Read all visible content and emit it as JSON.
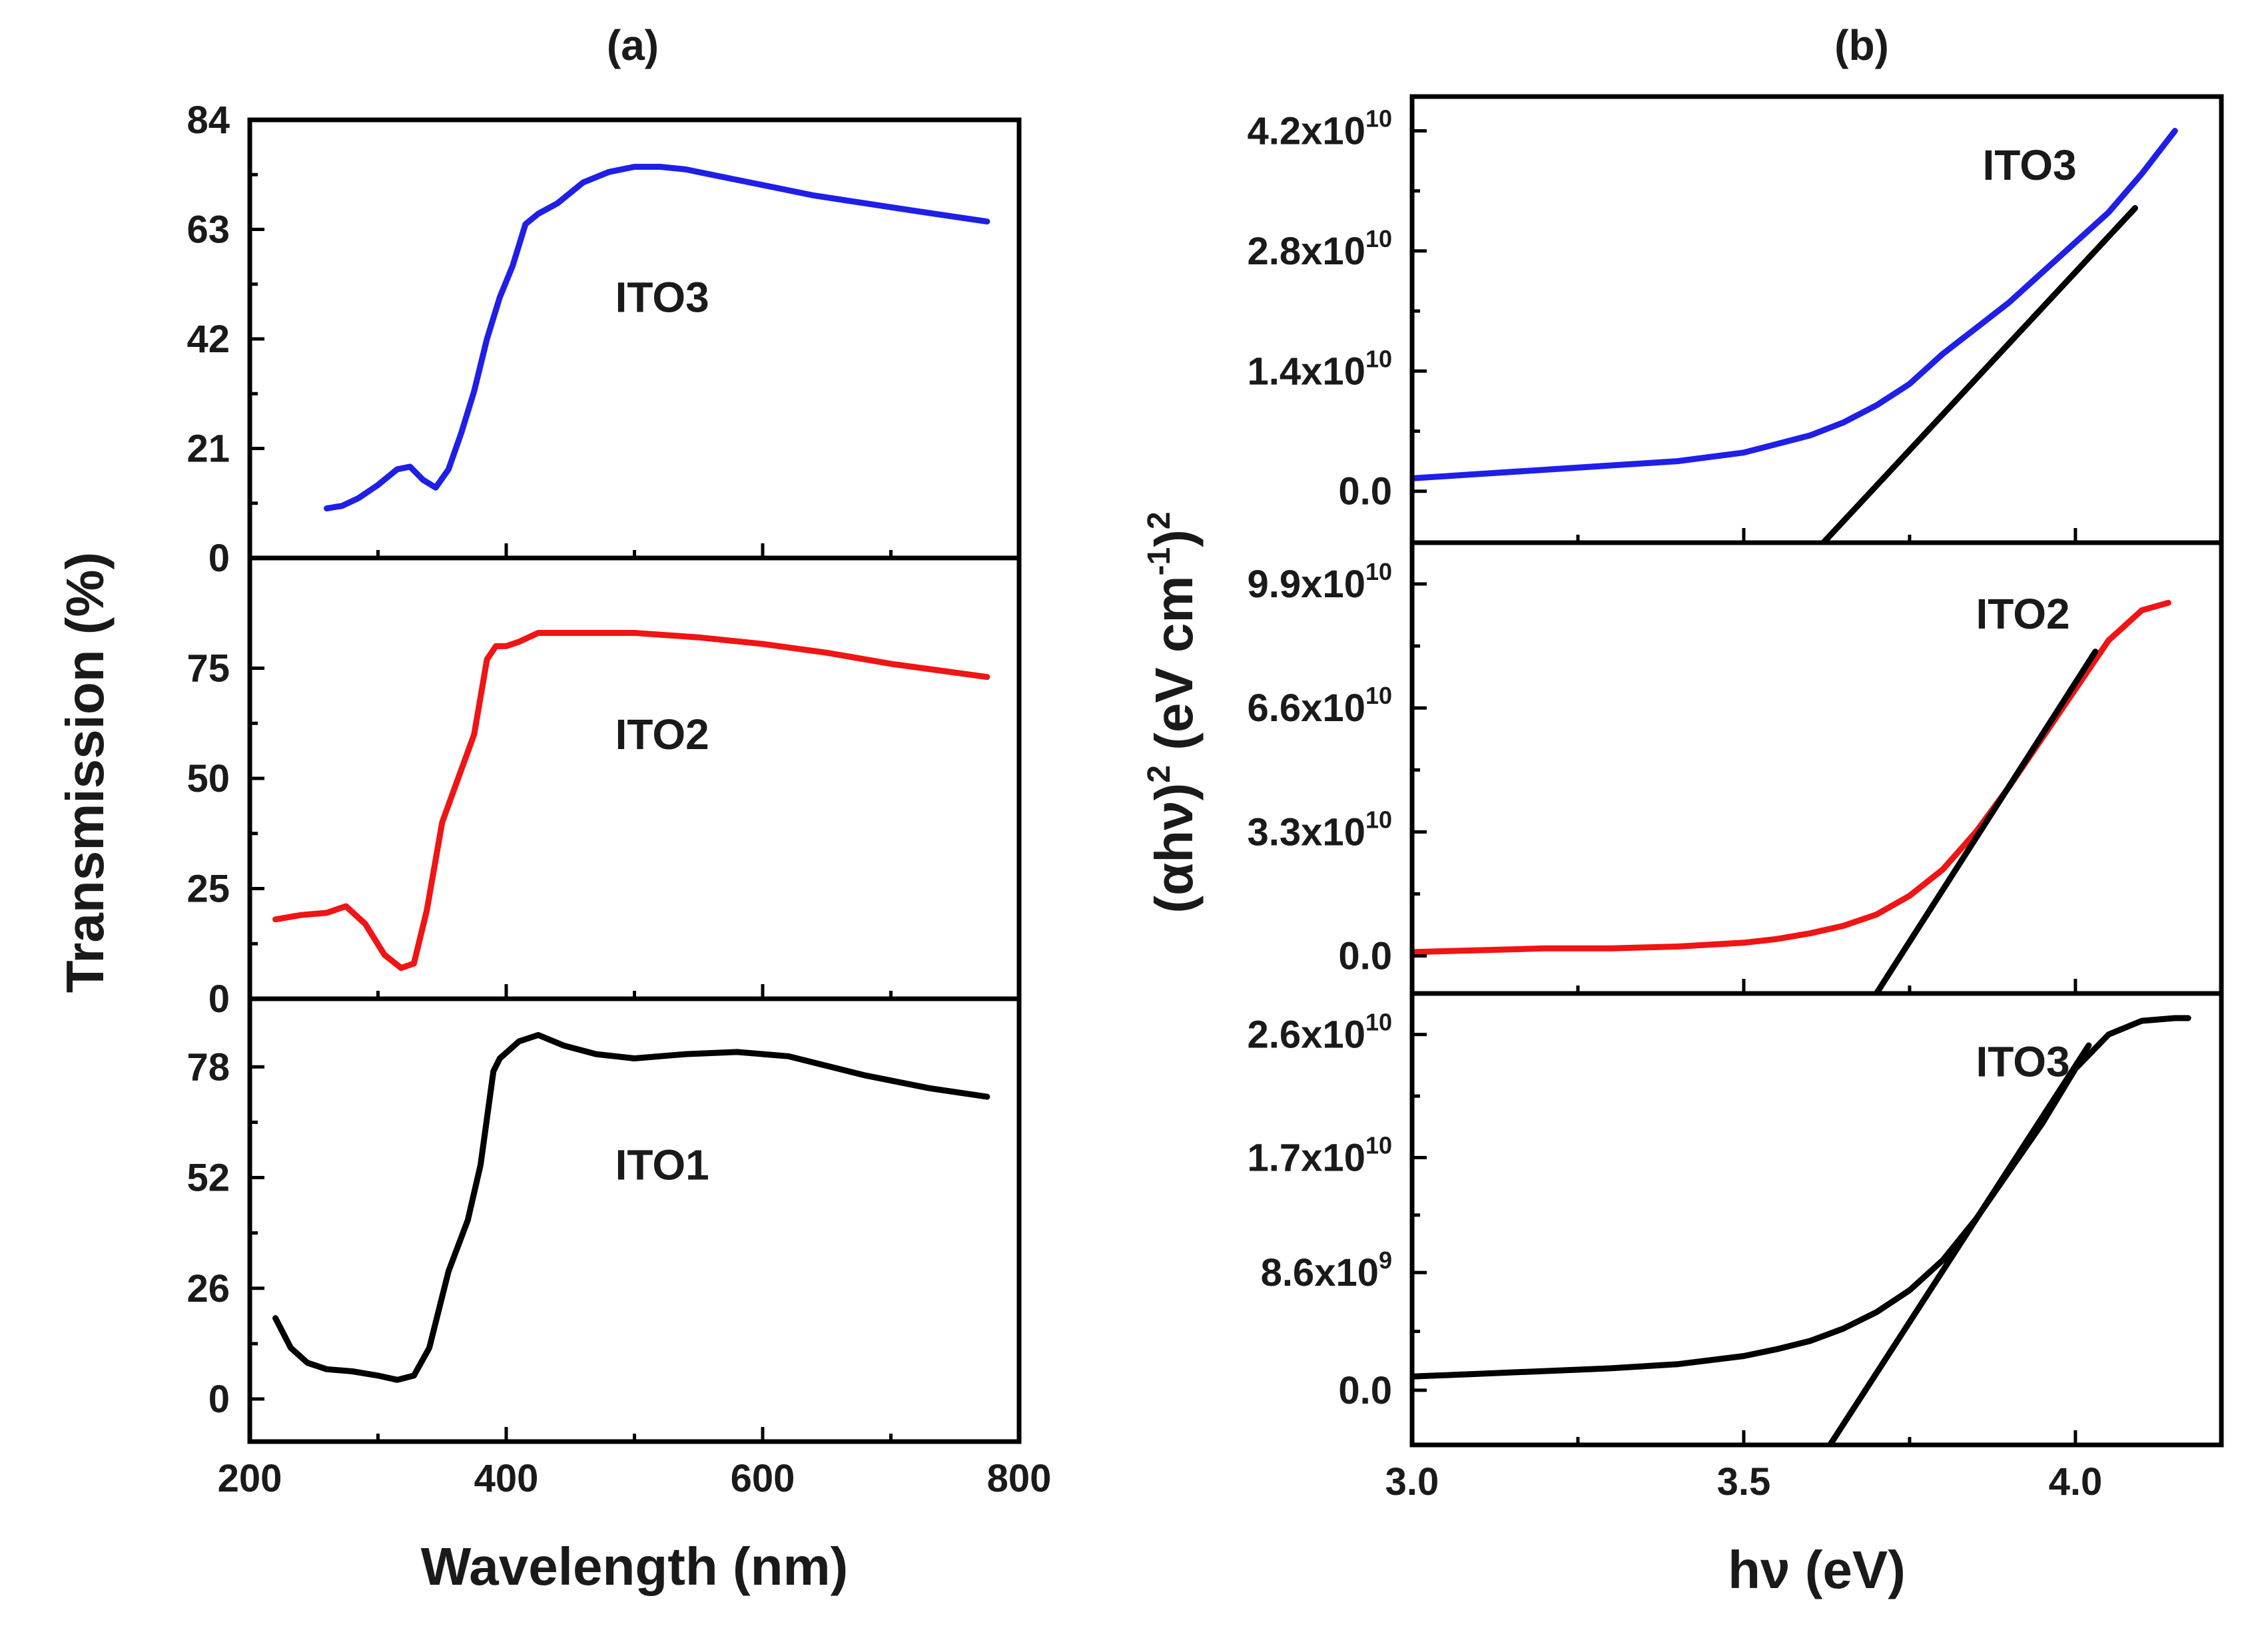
{
  "chart_data": [
    {
      "id": "a",
      "type": "line",
      "panel_label": "(a)",
      "xlabel": "Wavelength (nm)",
      "ylabel": "Transmission (%)",
      "xlim": [
        200,
        800
      ],
      "xticks": [
        200,
        400,
        600,
        800
      ],
      "xtick_labels": [
        "200",
        "400",
        "600",
        "800"
      ],
      "subplots": [
        {
          "name": "ITO3",
          "annotation": "ITO3",
          "color": "#1f1fe8",
          "ylim": [
            0,
            84
          ],
          "yticks": [
            0,
            21,
            42,
            63,
            84
          ],
          "ytick_labels": [
            "0",
            "21",
            "42",
            "63",
            "84"
          ],
          "label_at": [
            485,
            50
          ],
          "x": [
            260,
            272,
            285,
            300,
            315,
            325,
            335,
            345,
            355,
            365,
            375,
            385,
            395,
            405,
            415,
            420,
            425,
            440,
            460,
            480,
            500,
            520,
            540,
            560,
            580,
            600,
            640,
            680,
            720,
            775
          ],
          "y": [
            9.5,
            10,
            11.5,
            14,
            17,
            17.5,
            15,
            13.5,
            17,
            24,
            32,
            42,
            50,
            56,
            64,
            65,
            66,
            68,
            72,
            74,
            75,
            75,
            74.5,
            73.5,
            72.5,
            71.5,
            69.5,
            68,
            66.5,
            64.5
          ]
        },
        {
          "name": "ITO2",
          "annotation": "ITO2",
          "color": "#f01414",
          "ylim": [
            0,
            100
          ],
          "yticks": [
            0,
            25,
            50,
            75
          ],
          "ytick_labels": [
            "0",
            "25",
            "50",
            "75"
          ],
          "label_at": [
            485,
            60
          ],
          "x": [
            220,
            240,
            260,
            275,
            290,
            305,
            318,
            328,
            338,
            350,
            365,
            375,
            385,
            392,
            400,
            410,
            425,
            450,
            500,
            550,
            600,
            650,
            700,
            775
          ],
          "y": [
            18,
            19,
            19.5,
            21,
            17,
            10,
            7,
            8,
            20,
            40,
            52,
            60,
            77,
            80,
            80,
            81,
            83,
            83,
            83,
            82,
            80.5,
            78.5,
            76,
            73
          ]
        },
        {
          "name": "ITO1",
          "annotation": "ITO1",
          "color": "#000000",
          "ylim": [
            -10,
            94
          ],
          "yticks": [
            0,
            26,
            52,
            78
          ],
          "ytick_labels": [
            "0",
            "26",
            "52",
            "78"
          ],
          "label_at": [
            485,
            55
          ],
          "x": [
            220,
            232,
            245,
            260,
            280,
            300,
            315,
            328,
            340,
            355,
            370,
            380,
            390,
            395,
            410,
            425,
            445,
            470,
            500,
            540,
            580,
            620,
            680,
            730,
            775
          ],
          "y": [
            19,
            12,
            8.5,
            7,
            6.5,
            5.5,
            4.5,
            5.5,
            12,
            30,
            42,
            55,
            77,
            80,
            84,
            85.5,
            83,
            81,
            80,
            81,
            81.5,
            80.5,
            76,
            73,
            71
          ]
        }
      ]
    },
    {
      "id": "b",
      "type": "line",
      "panel_label": "(b)",
      "xlabel": "hν (eV)",
      "ylabel_main": "(αhν)",
      "ylabel_exp": "2",
      "ylabel_unit_pre": "(eV cm",
      "ylabel_unit_exp": "-1",
      "ylabel_unit_post": ")",
      "ylabel_unit_exp2": "2",
      "xlim": [
        3.0,
        4.22
      ],
      "xticks": [
        3.0,
        3.5,
        4.0
      ],
      "xtick_labels": [
        "3.0",
        "3.5",
        "4.0"
      ],
      "subplots": [
        {
          "name": "ITO3",
          "annotation": "ITO3",
          "color": "#1f1fe8",
          "ylim": [
            -6000000000.0,
            46000000000.0
          ],
          "yticks": [
            0,
            14000000000.0,
            28000000000.0,
            42000000000.0
          ],
          "ytick_mantissa": [
            "0.0",
            "1.4x10",
            "2.8x10",
            "4.2x10"
          ],
          "ytick_exponent": [
            "",
            "10",
            "10",
            "10"
          ],
          "label_at": [
            3.86,
            38000000000.0
          ],
          "x": [
            3.0,
            3.1,
            3.2,
            3.3,
            3.4,
            3.5,
            3.55,
            3.6,
            3.65,
            3.7,
            3.75,
            3.8,
            3.85,
            3.9,
            3.95,
            4.0,
            4.05,
            4.1,
            4.15
          ],
          "y": [
            1500000000.0,
            2000000000.0,
            2500000000.0,
            3000000000.0,
            3500000000.0,
            4500000000.0,
            5500000000.0,
            6500000000.0,
            8000000000.0,
            10000000000.0,
            12500000000.0,
            16000000000.0,
            19000000000.0,
            22000000000.0,
            25500000000.0,
            29000000000.0,
            32500000000.0,
            37000000000.0,
            42000000000.0
          ],
          "fit_x": [
            3.62,
            4.09
          ],
          "fit_y": [
            -6000000000.0,
            33000000000.0
          ]
        },
        {
          "name": "ITO2",
          "annotation": "ITO2",
          "color": "#f01414",
          "ylim": [
            -10000000000.0,
            110000000000.0
          ],
          "yticks": [
            0,
            33000000000.0,
            66000000000.0,
            99000000000.0
          ],
          "ytick_mantissa": [
            "0.0",
            "3.3x10",
            "6.6x10",
            "9.9x10"
          ],
          "ytick_exponent": [
            "",
            "10",
            "10",
            "10"
          ],
          "label_at": [
            3.85,
            91000000000.0
          ],
          "x": [
            3.0,
            3.1,
            3.2,
            3.3,
            3.4,
            3.5,
            3.55,
            3.6,
            3.65,
            3.7,
            3.75,
            3.8,
            3.85,
            3.9,
            3.95,
            4.0,
            4.05,
            4.1,
            4.14
          ],
          "y": [
            1000000000.0,
            1500000000.0,
            2000000000.0,
            2000000000.0,
            2500000000.0,
            3500000000.0,
            4500000000.0,
            6000000000.0,
            8000000000.0,
            11000000000.0,
            16000000000.0,
            23000000000.0,
            33000000000.0,
            45000000000.0,
            58000000000.0,
            71000000000.0,
            84000000000.0,
            92000000000.0,
            94000000000.0
          ],
          "fit_x": [
            3.7,
            4.03
          ],
          "fit_y": [
            -10000000000.0,
            81000000000.0
          ]
        },
        {
          "name": "ITO3",
          "annotation": "ITO3",
          "color": "#000000",
          "ylim": [
            -4000000000.0,
            29000000000.0
          ],
          "yticks": [
            0,
            8600000000.0,
            17000000000.0,
            26000000000.0
          ],
          "ytick_mantissa": [
            "0.0",
            "8.6x10",
            "1.7x10",
            "2.6x10"
          ],
          "ytick_exponent": [
            "",
            "9",
            "10",
            "10"
          ],
          "label_at": [
            3.85,
            24000000000.0
          ],
          "x": [
            3.0,
            3.1,
            3.2,
            3.3,
            3.4,
            3.5,
            3.55,
            3.6,
            3.65,
            3.7,
            3.75,
            3.8,
            3.85,
            3.9,
            3.95,
            4.0,
            4.05,
            4.1,
            4.15,
            4.17
          ],
          "y": [
            1000000000.0,
            1200000000.0,
            1400000000.0,
            1600000000.0,
            1900000000.0,
            2500000000.0,
            3000000000.0,
            3600000000.0,
            4500000000.0,
            5700000000.0,
            7300000000.0,
            9500000000.0,
            12500000000.0,
            16000000000.0,
            19500000000.0,
            23500000000.0,
            26000000000.0,
            27000000000.0,
            27200000000.0,
            27200000000.0
          ],
          "fit_x": [
            3.63,
            4.02
          ],
          "fit_y": [
            -4000000000.0,
            25200000000.0
          ]
        }
      ]
    }
  ]
}
